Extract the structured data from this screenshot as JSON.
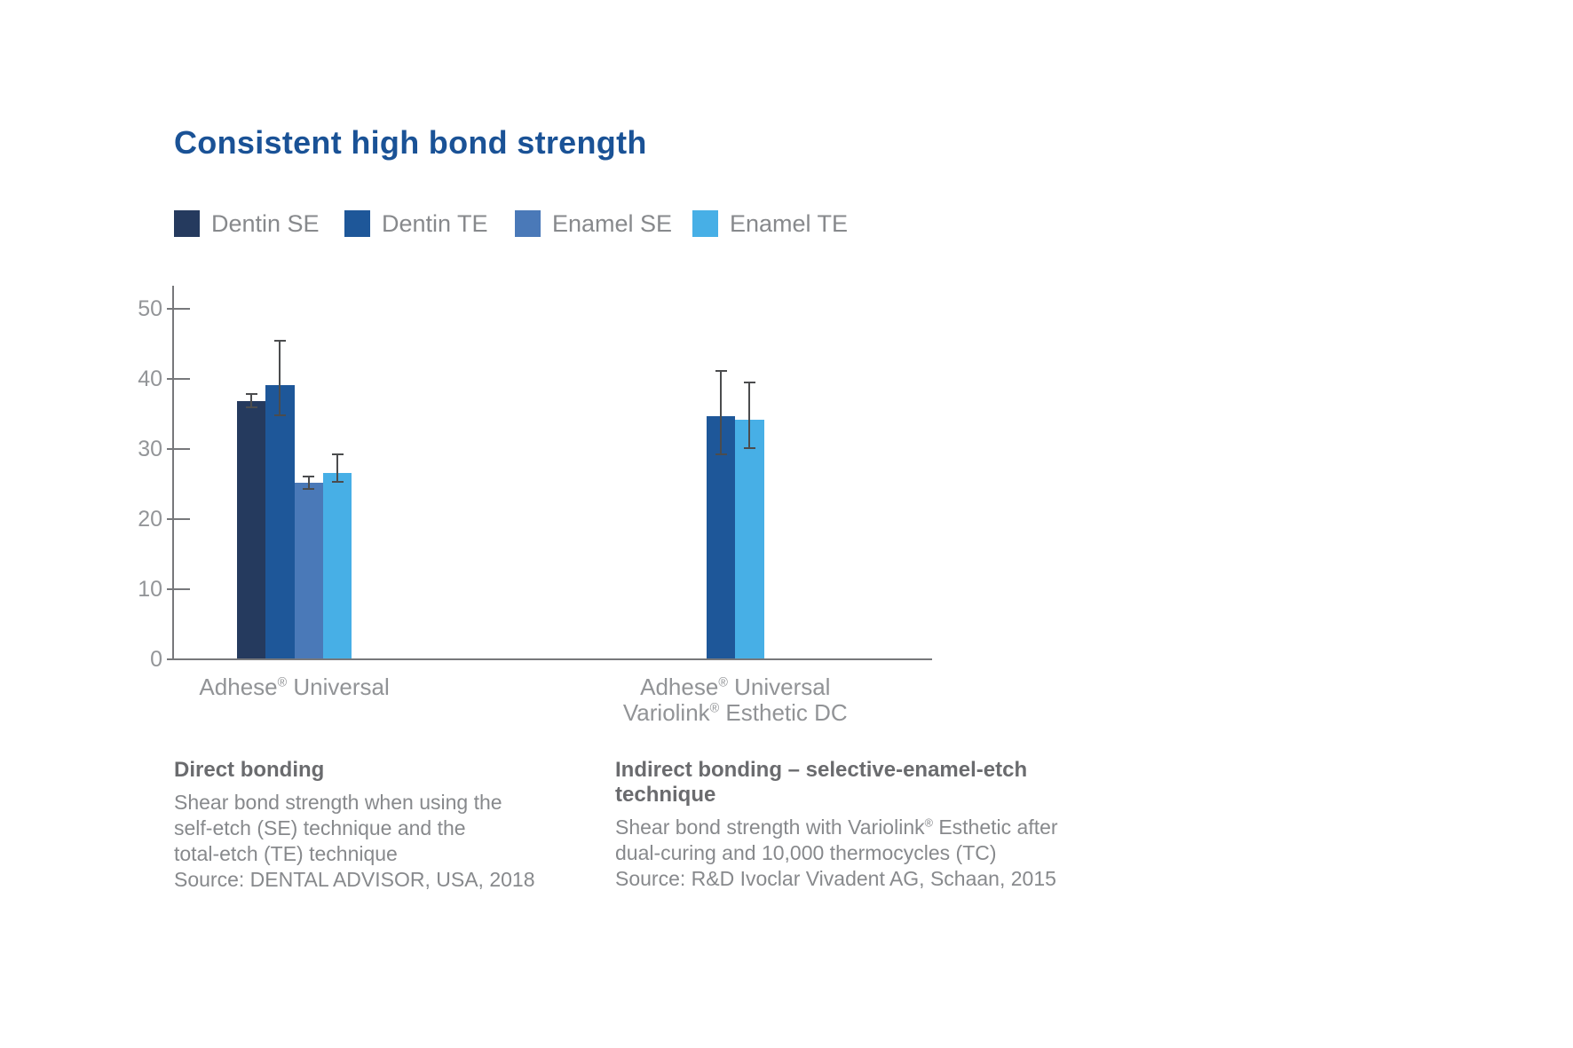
{
  "title": "Consistent high bond strength",
  "chart_data": {
    "type": "bar",
    "title": "Consistent high bond strength",
    "xlabel": "",
    "ylabel": "",
    "ylim": [
      0,
      50
    ],
    "yticks": [
      0,
      10,
      20,
      30,
      40,
      50
    ],
    "grid": false,
    "legend_position": "top",
    "error_bars": true,
    "series": [
      {
        "name": "Dentin SE",
        "color": "#253a5e"
      },
      {
        "name": "Dentin TE",
        "color": "#1e5799"
      },
      {
        "name": "Enamel SE",
        "color": "#4a79b8"
      },
      {
        "name": "Enamel TE",
        "color": "#47afe6"
      }
    ],
    "groups": [
      {
        "category_lines": [
          "Adhese® Universal"
        ],
        "bars": [
          {
            "series": "Dentin SE",
            "value": 36.7,
            "err_low": 35.7,
            "err_high": 37.9
          },
          {
            "series": "Dentin TE",
            "value": 39.0,
            "err_low": 34.5,
            "err_high": 45.5
          },
          {
            "series": "Enamel SE",
            "value": 25.1,
            "err_low": 24.0,
            "err_high": 26.1
          },
          {
            "series": "Enamel TE",
            "value": 26.5,
            "err_low": 25.1,
            "err_high": 29.2
          }
        ]
      },
      {
        "category_lines": [
          "Adhese® Universal",
          "Variolink® Esthetic DC"
        ],
        "bars": [
          {
            "series": "Dentin TE",
            "value": 34.5,
            "err_low": 29.0,
            "err_high": 41.2
          },
          {
            "series": "Enamel TE",
            "value": 34.0,
            "err_low": 29.9,
            "err_high": 39.5
          }
        ]
      }
    ]
  },
  "notes": [
    {
      "heading_lines": [
        "Direct bonding"
      ],
      "body_lines": [
        "Shear bond strength when using the",
        "self-etch (SE) technique and the",
        "total-etch (TE) technique"
      ],
      "source": "Source: DENTAL ADVISOR, USA, 2018"
    },
    {
      "heading_lines": [
        "Indirect bonding – selective-enamel-etch",
        "technique"
      ],
      "body_lines": [
        "Shear bond strength with Variolink® Esthetic after",
        "dual-curing and 10,000 thermocycles (TC)"
      ],
      "source": "Source: R&D Ivoclar Vivadent AG, Schaan, 2015"
    }
  ],
  "colors": {
    "title": "#1a5296",
    "heading_text": "#6a6b6e",
    "body_text": "#87898c",
    "axis": "#77787b",
    "tick_label": "#939598",
    "category_label": "#919396",
    "error_bar": "#4b4c4e",
    "background": "#ffffff"
  }
}
